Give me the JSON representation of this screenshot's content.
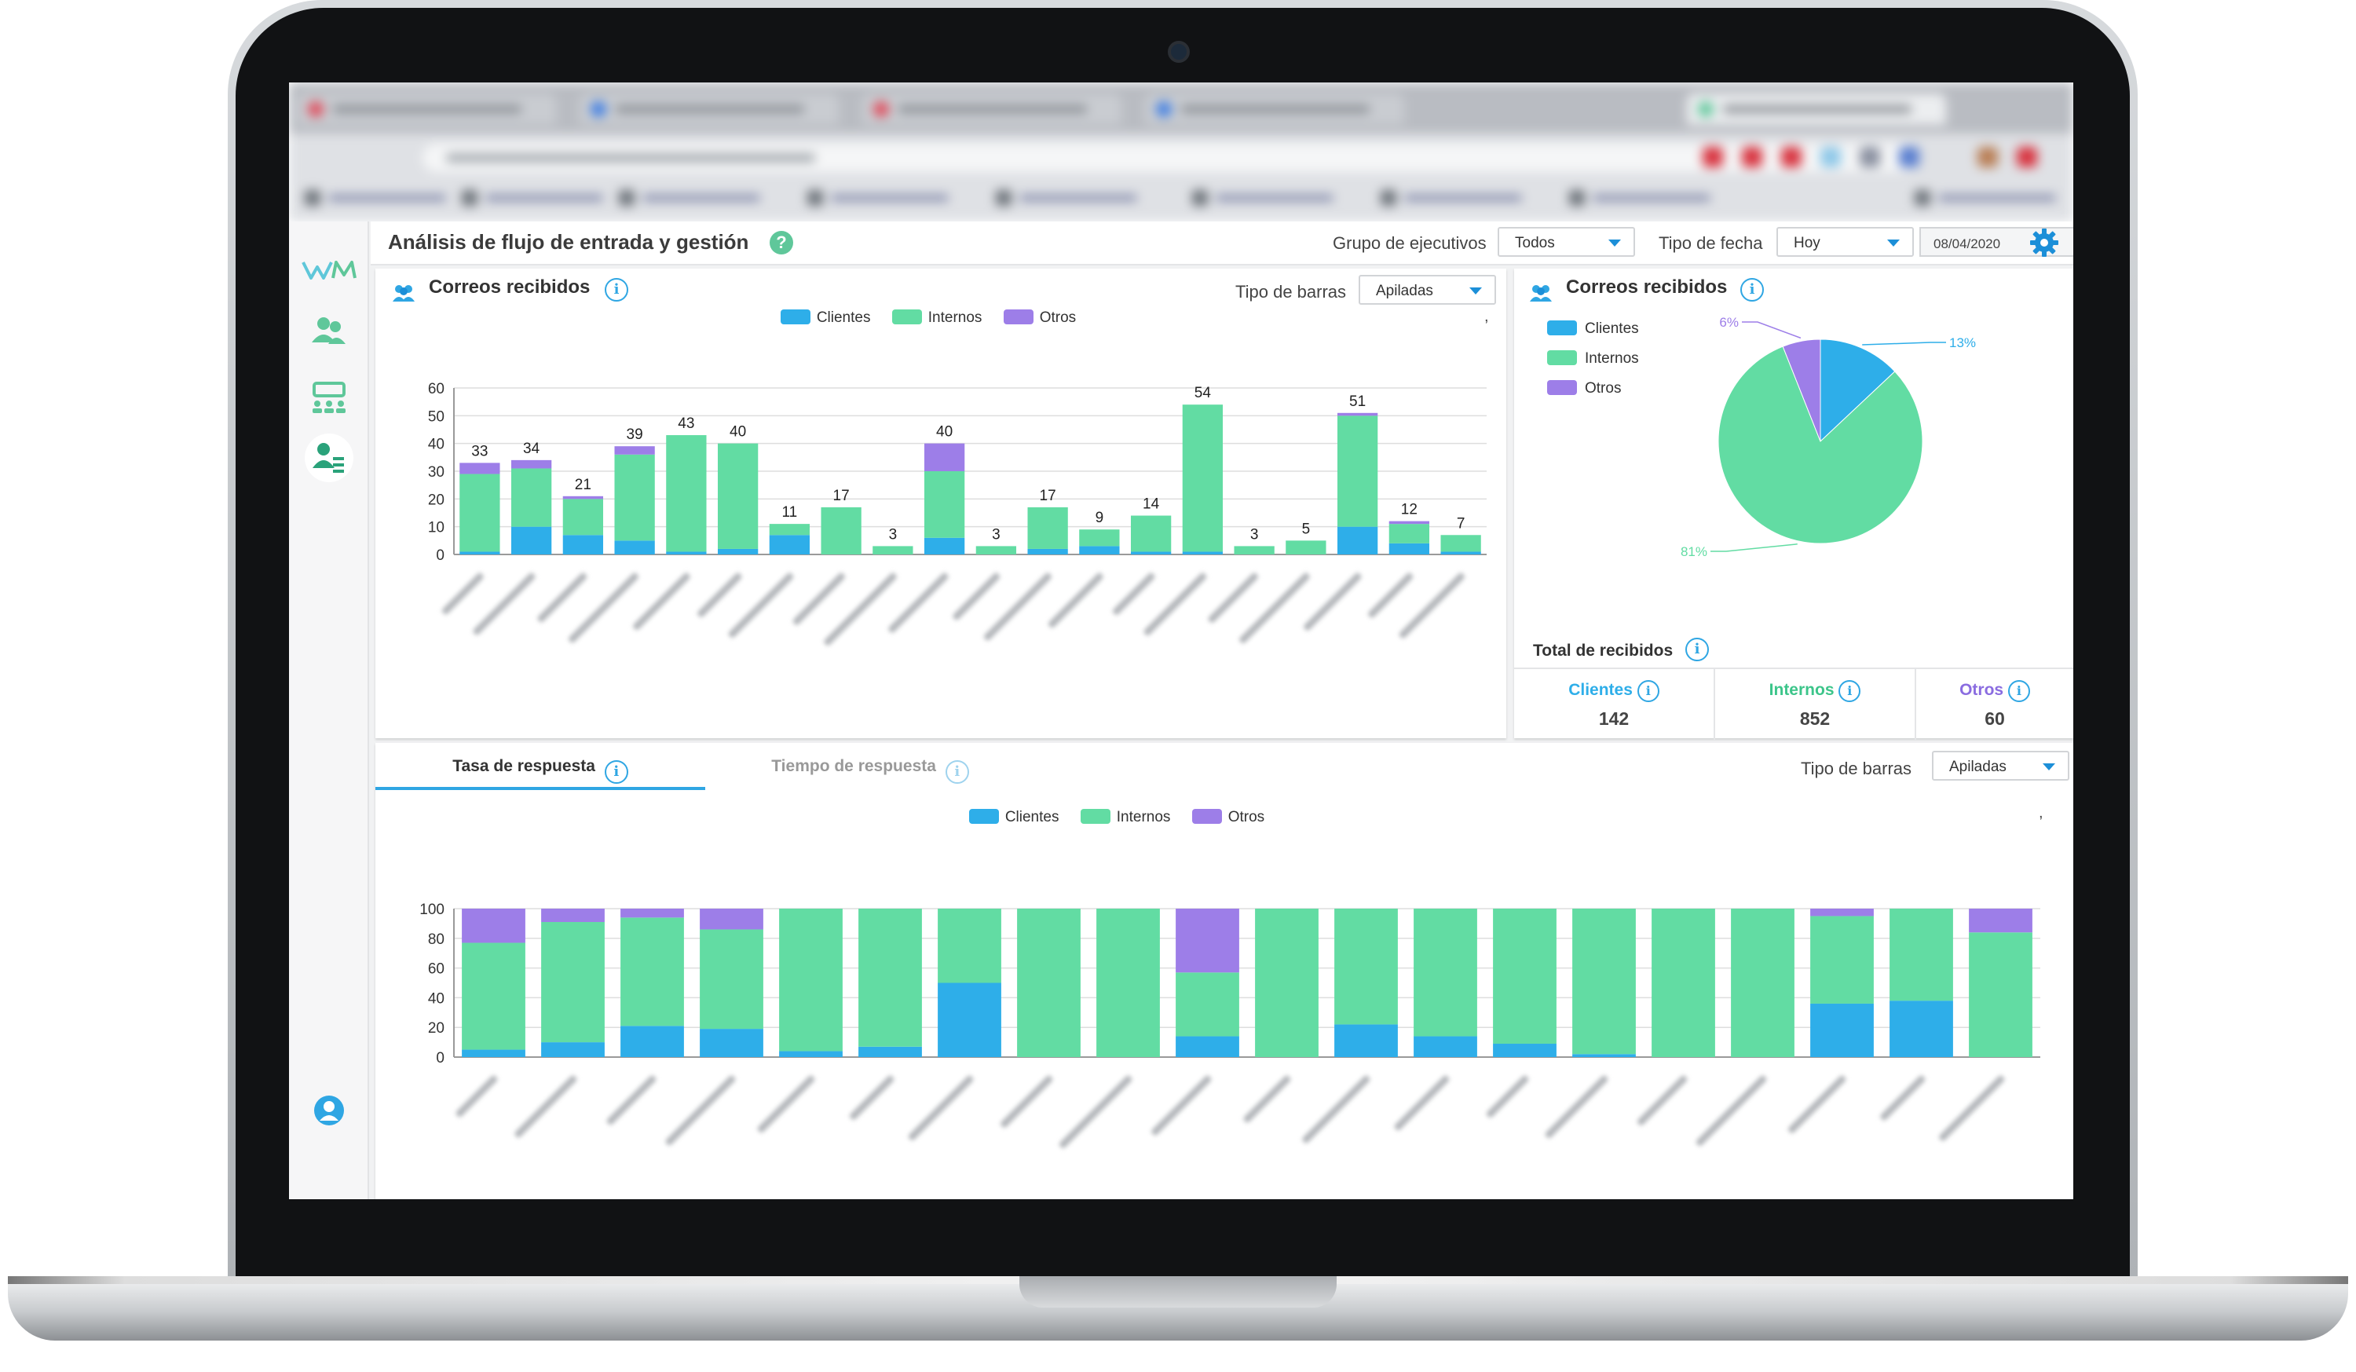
{
  "app": {
    "title": "Análisis de flujo de entrada y gestión",
    "filters": {
      "group_label": "Grupo de ejecutivos",
      "group_value": "Todos",
      "date_type_label": "Tipo de fecha",
      "date_type_value": "Hoy",
      "date_value": "08/04/2020"
    }
  },
  "icons": {
    "sidebar": [
      "wm-logo",
      "users-icon",
      "team-board-icon",
      "user-flow-icon",
      "account-icon"
    ],
    "settings": "gear-icon",
    "help": "help-icon",
    "info": "info-icon"
  },
  "colors": {
    "clientes": "#2eaee9",
    "internos": "#62dca3",
    "otros": "#9d7ee8",
    "accent": "#1c8fd8"
  },
  "received_card": {
    "title": "Correos recibidos",
    "bar_type_label": "Tipo de barras",
    "bar_type_value": "Apiladas",
    "corner_mark": ","
  },
  "pie_card": {
    "title": "Correos recibidos",
    "total_title": "Total de recibidos",
    "totals": [
      {
        "name": "Clientes",
        "value": "142"
      },
      {
        "name": "Internos",
        "value": "852"
      },
      {
        "name": "Otros",
        "value": "60"
      }
    ]
  },
  "response_card": {
    "tabs": [
      "Tasa de respuesta",
      "Tiempo de respuesta"
    ],
    "active_tab": 0,
    "bar_type_label": "Tipo de barras",
    "bar_type_value": "Apiladas",
    "corner_mark": ","
  },
  "chart_data": [
    {
      "type": "bar",
      "stacked": true,
      "series": [
        {
          "name": "Clientes",
          "values": [
            1,
            10,
            7,
            5,
            1,
            2,
            7,
            0,
            0,
            6,
            0,
            2,
            3,
            1,
            1,
            0,
            0,
            10,
            4,
            1
          ]
        },
        {
          "name": "Internos",
          "values": [
            28,
            21,
            13,
            31,
            42,
            38,
            4,
            17,
            3,
            24,
            3,
            15,
            6,
            13,
            53,
            3,
            5,
            40,
            7,
            6
          ]
        },
        {
          "name": "Otros",
          "values": [
            4,
            3,
            1,
            3,
            0,
            0,
            0,
            0,
            0,
            10,
            0,
            0,
            0,
            0,
            0,
            0,
            0,
            1,
            1,
            0
          ]
        }
      ],
      "totals": [
        33,
        34,
        21,
        39,
        43,
        40,
        11,
        17,
        3,
        40,
        3,
        17,
        9,
        14,
        54,
        3,
        5,
        51,
        12,
        7
      ],
      "yticks": [
        0,
        10,
        20,
        30,
        40,
        50,
        60
      ],
      "ylim": [
        0,
        60
      ],
      "grid": true,
      "legend": "top-center"
    },
    {
      "type": "pie",
      "slices": [
        {
          "name": "Clientes",
          "value": 13,
          "label": "13%"
        },
        {
          "name": "Internos",
          "value": 81,
          "label": "81%"
        },
        {
          "name": "Otros",
          "value": 6,
          "label": "6%"
        }
      ],
      "legend": "left"
    },
    {
      "type": "bar",
      "stacked": true,
      "series": [
        {
          "name": "Clientes",
          "values": [
            5,
            10,
            21,
            19,
            4,
            7,
            50,
            0,
            0,
            14,
            0,
            22,
            14,
            9,
            2,
            0,
            0,
            36,
            38,
            0
          ]
        },
        {
          "name": "Internos",
          "values": [
            72,
            81,
            73,
            67,
            96,
            93,
            50,
            100,
            100,
            43,
            100,
            78,
            86,
            91,
            98,
            100,
            100,
            59,
            62,
            84
          ]
        },
        {
          "name": "Otros",
          "values": [
            23,
            9,
            6,
            14,
            0,
            0,
            0,
            0,
            0,
            43,
            0,
            0,
            0,
            0,
            0,
            0,
            0,
            5,
            0,
            16
          ]
        }
      ],
      "yticks": [
        0,
        20,
        40,
        60,
        80,
        100
      ],
      "ylim": [
        0,
        100
      ],
      "grid": true,
      "legend": "top-center"
    }
  ]
}
